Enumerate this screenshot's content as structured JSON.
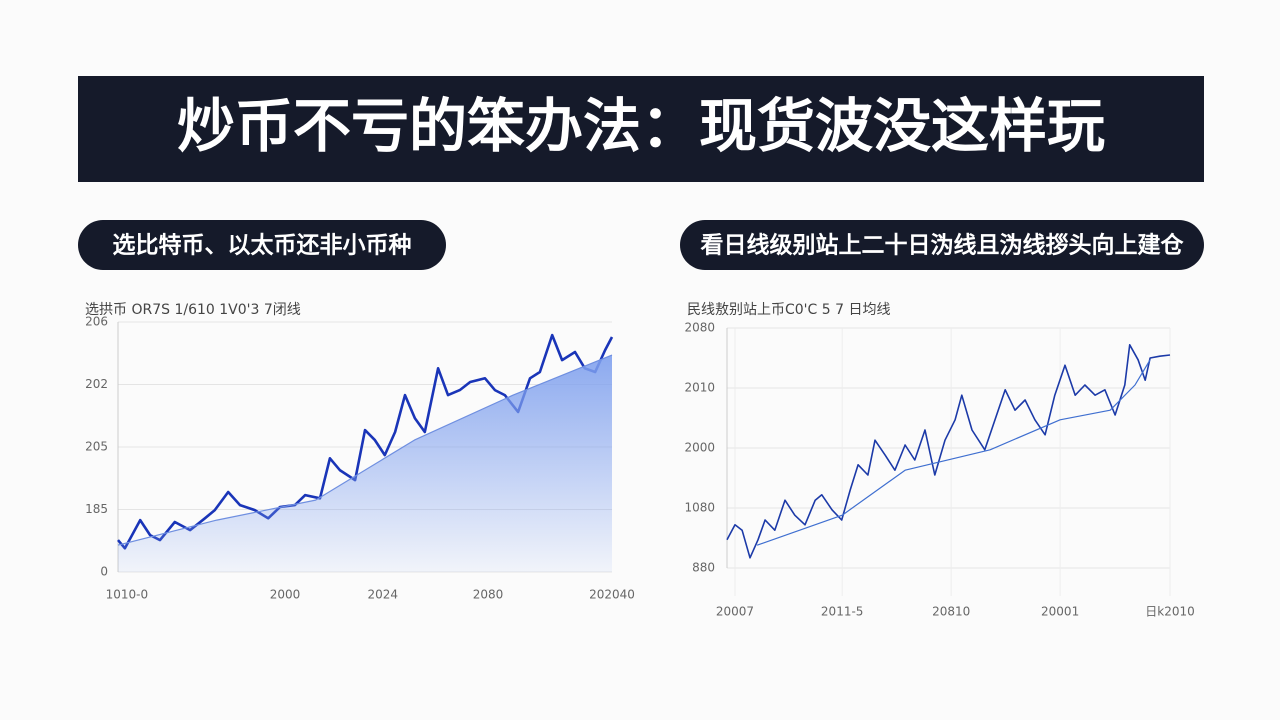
{
  "header": {
    "title": "炒币不亏的笨办法：现货波没这样玩"
  },
  "pills": [
    "选比特币、以太币还非小币种",
    "看日线级别站上二十日沩线且沩线拶头向上建仓"
  ],
  "chart_data": [
    {
      "type": "area-line",
      "title": "选拱币 OR7S 1/610 1V0'3 7闭线",
      "xlim": [
        0,
        100
      ],
      "ylim": [
        0,
        4
      ],
      "grid": true,
      "yticks": [
        {
          "value": 0,
          "label": "0"
        },
        {
          "value": 1,
          "label": "185"
        },
        {
          "value": 2,
          "label": "205"
        },
        {
          "value": 3,
          "label": "202"
        },
        {
          "value": 4,
          "label": "206"
        }
      ],
      "xticks": [
        {
          "value": 1.8,
          "label": "1010-0"
        },
        {
          "value": 33.8,
          "label": "2000"
        },
        {
          "value": 53.6,
          "label": "2024"
        },
        {
          "value": 74.9,
          "label": "2080"
        },
        {
          "value": 100,
          "label": "202040"
        }
      ],
      "series": [
        {
          "color": "#1a35b8",
          "x": [
            0,
            1.4,
            4.5,
            6.5,
            8.5,
            11.5,
            14.6,
            17.6,
            19.6,
            22.3,
            24.7,
            27.7,
            30.4,
            32.8,
            35.8,
            37.9,
            40.9,
            42.9,
            44.9,
            48,
            50,
            52,
            54,
            56.1,
            58.1,
            60.1,
            62.1,
            64.8,
            66.8,
            69.2,
            71.3,
            74.3,
            76.3,
            78.3,
            81,
            83.4,
            85.4,
            87.9,
            89.9,
            92.5,
            94.5,
            96.6,
            98.6,
            100
          ],
          "values": [
            0.51,
            0.38,
            0.83,
            0.59,
            0.51,
            0.8,
            0.67,
            0.86,
            0.99,
            1.28,
            1.07,
            0.99,
            0.86,
            1.04,
            1.07,
            1.23,
            1.18,
            1.82,
            1.63,
            1.47,
            2.27,
            2.11,
            1.87,
            2.24,
            2.83,
            2.46,
            2.24,
            3.26,
            2.83,
            2.91,
            3.04,
            3.1,
            2.91,
            2.83,
            2.56,
            3.1,
            3.2,
            3.79,
            3.39,
            3.52,
            3.26,
            3.2,
            3.55,
            3.76
          ]
        },
        {
          "color": "#6f8fe0",
          "area": "#7fa0ee",
          "x": [
            0,
            20,
            40,
            60,
            80,
            100
          ],
          "values": [
            0.43,
            0.83,
            1.15,
            2.11,
            2.83,
            3.47
          ]
        }
      ]
    },
    {
      "type": "line",
      "title": "民线敖别站上币C0'C 5 7 日均线",
      "xlim": [
        0,
        100
      ],
      "ylim": [
        0,
        4
      ],
      "grid": true,
      "yticks": [
        {
          "value": 0,
          "label": "880"
        },
        {
          "value": 1,
          "label": "1080"
        },
        {
          "value": 2,
          "label": "2000"
        },
        {
          "value": 3,
          "label": "2010"
        },
        {
          "value": 4,
          "label": "2080"
        }
      ],
      "xticks": [
        {
          "value": 1.8,
          "label": "20007"
        },
        {
          "value": 26,
          "label": "2011-5"
        },
        {
          "value": 50.6,
          "label": "20810"
        },
        {
          "value": 75.2,
          "label": "20001"
        },
        {
          "value": 100,
          "label": "日k2010"
        }
      ],
      "series": [
        {
          "color": "#1c3aa8",
          "x": [
            0,
            1.8,
            3.4,
            5.2,
            7,
            8.6,
            10.8,
            13.1,
            15.3,
            17.6,
            19.9,
            21.4,
            23.7,
            25.9,
            27.8,
            29.6,
            31.8,
            33.4,
            35.7,
            37.9,
            40.2,
            42.4,
            44.7,
            46.9,
            49.2,
            51.5,
            53,
            55.3,
            58.2,
            60.5,
            62.8,
            65,
            67.3,
            69.5,
            71.8,
            74,
            76.3,
            78.6,
            80.8,
            83.1,
            85.3,
            87.6,
            89.8,
            90.9,
            92.8,
            94.4,
            95.5,
            97.7,
            100
          ],
          "values": [
            0.47,
            0.72,
            0.63,
            0.17,
            0.47,
            0.8,
            0.63,
            1.13,
            0.88,
            0.72,
            1.13,
            1.22,
            0.97,
            0.8,
            1.3,
            1.72,
            1.55,
            2.13,
            1.88,
            1.63,
            2.05,
            1.8,
            2.3,
            1.55,
            2.13,
            2.47,
            2.88,
            2.3,
            1.97,
            2.47,
            2.97,
            2.63,
            2.8,
            2.47,
            2.22,
            2.88,
            3.38,
            2.88,
            3.05,
            2.88,
            2.97,
            2.55,
            3.05,
            3.72,
            3.47,
            3.13,
            3.5,
            3.53,
            3.55
          ]
        },
        {
          "color": "#3f6fd0",
          "x": [
            6.8,
            26,
            40.2,
            59.4,
            75.2,
            86.5,
            92.1,
            95.5
          ],
          "values": [
            0.38,
            0.88,
            1.63,
            1.97,
            2.47,
            2.63,
            3.05,
            3.47
          ]
        }
      ]
    }
  ]
}
